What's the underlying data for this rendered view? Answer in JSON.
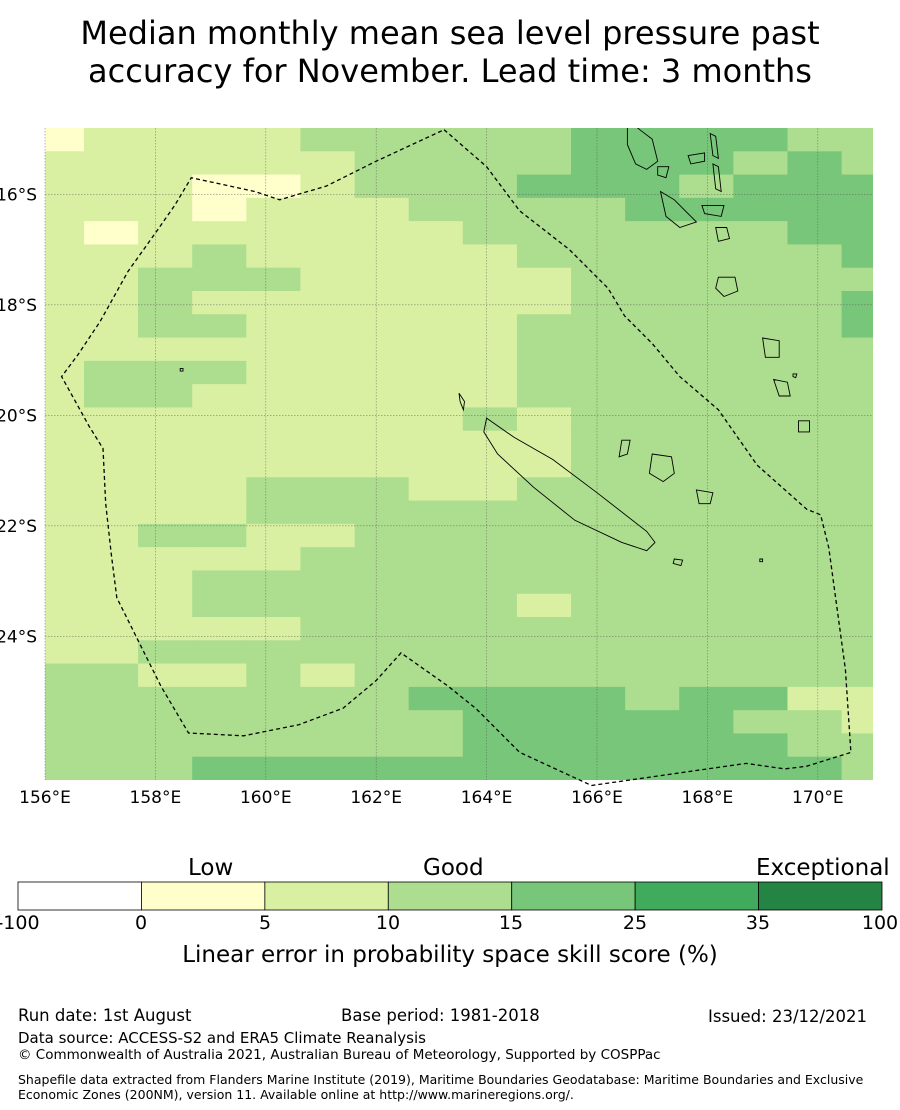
{
  "title_lines": [
    "Median monthly mean sea level pressure past",
    "accuracy for November. Lead time: 3 months"
  ],
  "map": {
    "lon_range": [
      156.0,
      171.0
    ],
    "lat_range": [
      -26.6,
      -14.8
    ],
    "lon_ticks": [
      {
        "value": 156,
        "label": "156°E"
      },
      {
        "value": 158,
        "label": "158°E"
      },
      {
        "value": 160,
        "label": "160°E"
      },
      {
        "value": 162,
        "label": "162°E"
      },
      {
        "value": 164,
        "label": "164°E"
      },
      {
        "value": 166,
        "label": "166°E"
      },
      {
        "value": 168,
        "label": "168°E"
      },
      {
        "value": 170,
        "label": "170°E"
      }
    ],
    "lat_ticks": [
      {
        "value": -16,
        "label": "16°S"
      },
      {
        "value": -18,
        "label": "18°S"
      },
      {
        "value": -20,
        "label": "20°S"
      },
      {
        "value": -22,
        "label": "22°S"
      },
      {
        "value": -24,
        "label": "24°S"
      }
    ],
    "grid": true,
    "cell_categories": [
      "1222233333444433",
      "2222223333444343",
      "2221123334443444",
      "2221222333344444",
      "2122222233333344",
      "2223222223333334",
      "2233322222333333",
      "2232222222333334",
      "2233222223333334",
      "2222222223333333",
      "2333222223333333",
      "2332222223333333",
      "2222222232333333",
      "2222222222333333",
      "2222222222333333",
      "2222333223333333",
      "2222333333333333",
      "2233223333333333",
      "2222233333333333",
      "2223333333333333",
      "2223333332333333",
      "2222233333333333",
      "2233333333333333",
      "3322323333333333",
      "3333333444434422",
      "3333333344444332",
      "3333333344444433",
      "3334444444444443"
    ],
    "eez_boundary": [
      [
        163.23,
        -14.83
      ],
      [
        164.0,
        -15.5
      ],
      [
        164.6,
        -16.3
      ],
      [
        165.5,
        -17.0
      ],
      [
        166.2,
        -17.7
      ],
      [
        166.5,
        -18.2
      ],
      [
        167.0,
        -18.7
      ],
      [
        167.5,
        -19.3
      ],
      [
        168.2,
        -19.9
      ],
      [
        168.9,
        -20.9
      ],
      [
        169.8,
        -21.7
      ],
      [
        170.05,
        -21.8
      ],
      [
        170.2,
        -22.4
      ],
      [
        170.5,
        -24.6
      ],
      [
        170.6,
        -26.1
      ],
      [
        169.8,
        -26.35
      ],
      [
        169.4,
        -26.4
      ],
      [
        168.7,
        -26.3
      ],
      [
        165.9,
        -26.7
      ],
      [
        164.6,
        -26.1
      ],
      [
        163.8,
        -25.3
      ],
      [
        163.3,
        -24.9
      ],
      [
        162.45,
        -24.3
      ],
      [
        162.0,
        -24.8
      ],
      [
        161.4,
        -25.3
      ],
      [
        160.6,
        -25.6
      ],
      [
        159.6,
        -25.8
      ],
      [
        158.6,
        -25.75
      ],
      [
        158.1,
        -24.9
      ],
      [
        157.7,
        -24.1
      ],
      [
        157.3,
        -23.3
      ],
      [
        157.2,
        -22.5
      ],
      [
        157.1,
        -21.6
      ],
      [
        157.05,
        -20.6
      ],
      [
        156.8,
        -20.2
      ],
      [
        156.3,
        -19.3
      ],
      [
        156.6,
        -18.9
      ],
      [
        157.0,
        -18.3
      ],
      [
        157.5,
        -17.4
      ],
      [
        158.0,
        -16.7
      ],
      [
        158.35,
        -16.2
      ],
      [
        158.65,
        -15.7
      ],
      [
        159.8,
        -15.95
      ],
      [
        160.25,
        -16.1
      ],
      [
        161.1,
        -15.85
      ],
      [
        162.0,
        -15.4
      ],
      [
        163.23,
        -14.83
      ]
    ],
    "islands": [
      {
        "name": "grande-terre",
        "points": [
          [
            164.0,
            -20.05
          ],
          [
            164.5,
            -20.4
          ],
          [
            165.2,
            -20.8
          ],
          [
            166.0,
            -21.4
          ],
          [
            166.9,
            -22.1
          ],
          [
            167.05,
            -22.3
          ],
          [
            166.9,
            -22.45
          ],
          [
            166.45,
            -22.3
          ],
          [
            165.6,
            -21.9
          ],
          [
            164.85,
            -21.3
          ],
          [
            164.2,
            -20.7
          ],
          [
            163.95,
            -20.3
          ],
          [
            164.0,
            -20.05
          ]
        ]
      },
      {
        "name": "ile-des-pins",
        "points": [
          [
            167.4,
            -22.6
          ],
          [
            167.55,
            -22.62
          ],
          [
            167.52,
            -22.72
          ],
          [
            167.38,
            -22.68
          ],
          [
            167.4,
            -22.6
          ]
        ]
      },
      {
        "name": "belep",
        "points": [
          [
            163.5,
            -19.6
          ],
          [
            163.6,
            -19.75
          ],
          [
            163.58,
            -19.9
          ],
          [
            163.52,
            -19.75
          ],
          [
            163.5,
            -19.6
          ]
        ]
      },
      {
        "name": "ouvea",
        "points": [
          [
            166.45,
            -20.45
          ],
          [
            166.6,
            -20.45
          ],
          [
            166.55,
            -20.7
          ],
          [
            166.4,
            -20.75
          ],
          [
            166.45,
            -20.45
          ]
        ]
      },
      {
        "name": "lifou",
        "points": [
          [
            167.0,
            -20.7
          ],
          [
            167.35,
            -20.75
          ],
          [
            167.4,
            -21.05
          ],
          [
            167.2,
            -21.2
          ],
          [
            166.95,
            -21.05
          ],
          [
            167.0,
            -20.7
          ]
        ]
      },
      {
        "name": "mare",
        "points": [
          [
            167.8,
            -21.35
          ],
          [
            168.1,
            -21.4
          ],
          [
            168.05,
            -21.6
          ],
          [
            167.85,
            -21.6
          ],
          [
            167.8,
            -21.35
          ]
        ]
      },
      {
        "name": "espiritu-santo",
        "points": [
          [
            166.55,
            -14.65
          ],
          [
            166.8,
            -14.85
          ],
          [
            167.0,
            -15.0
          ],
          [
            167.1,
            -15.4
          ],
          [
            166.9,
            -15.55
          ],
          [
            166.7,
            -15.45
          ],
          [
            166.55,
            -15.1
          ],
          [
            166.55,
            -14.65
          ]
        ]
      },
      {
        "name": "malo-area",
        "points": [
          [
            167.1,
            -15.5
          ],
          [
            167.3,
            -15.5
          ],
          [
            167.25,
            -15.7
          ],
          [
            167.1,
            -15.65
          ],
          [
            167.1,
            -15.5
          ]
        ]
      },
      {
        "name": "malekula",
        "points": [
          [
            167.15,
            -15.95
          ],
          [
            167.4,
            -16.1
          ],
          [
            167.8,
            -16.5
          ],
          [
            167.5,
            -16.6
          ],
          [
            167.25,
            -16.4
          ],
          [
            167.15,
            -15.95
          ]
        ]
      },
      {
        "name": "pentecost",
        "points": [
          [
            168.1,
            -15.45
          ],
          [
            168.2,
            -15.5
          ],
          [
            168.25,
            -15.95
          ],
          [
            168.15,
            -15.9
          ],
          [
            168.1,
            -15.45
          ]
        ]
      },
      {
        "name": "ambae",
        "points": [
          [
            167.65,
            -15.3
          ],
          [
            167.95,
            -15.25
          ],
          [
            167.95,
            -15.4
          ],
          [
            167.7,
            -15.45
          ],
          [
            167.65,
            -15.3
          ]
        ]
      },
      {
        "name": "maewo",
        "points": [
          [
            168.05,
            -14.9
          ],
          [
            168.15,
            -14.95
          ],
          [
            168.2,
            -15.35
          ],
          [
            168.1,
            -15.3
          ],
          [
            168.05,
            -14.9
          ]
        ]
      },
      {
        "name": "ambrym",
        "points": [
          [
            167.9,
            -16.2
          ],
          [
            168.3,
            -16.2
          ],
          [
            168.25,
            -16.4
          ],
          [
            167.95,
            -16.35
          ],
          [
            167.9,
            -16.2
          ]
        ]
      },
      {
        "name": "epi",
        "points": [
          [
            168.15,
            -16.6
          ],
          [
            168.35,
            -16.6
          ],
          [
            168.4,
            -16.8
          ],
          [
            168.2,
            -16.85
          ],
          [
            168.15,
            -16.6
          ]
        ]
      },
      {
        "name": "efate",
        "points": [
          [
            168.2,
            -17.5
          ],
          [
            168.5,
            -17.5
          ],
          [
            168.55,
            -17.75
          ],
          [
            168.3,
            -17.85
          ],
          [
            168.15,
            -17.7
          ],
          [
            168.2,
            -17.5
          ]
        ]
      },
      {
        "name": "erromango",
        "points": [
          [
            169.0,
            -18.6
          ],
          [
            169.3,
            -18.65
          ],
          [
            169.3,
            -18.95
          ],
          [
            169.05,
            -18.95
          ],
          [
            169.0,
            -18.6
          ]
        ]
      },
      {
        "name": "tanna",
        "points": [
          [
            169.2,
            -19.35
          ],
          [
            169.45,
            -19.4
          ],
          [
            169.5,
            -19.65
          ],
          [
            169.3,
            -19.65
          ],
          [
            169.2,
            -19.35
          ]
        ]
      },
      {
        "name": "aneityum",
        "points": [
          [
            169.65,
            -20.1
          ],
          [
            169.85,
            -20.1
          ],
          [
            169.85,
            -20.3
          ],
          [
            169.65,
            -20.3
          ],
          [
            169.65,
            -20.1
          ]
        ]
      },
      {
        "name": "chesterfield",
        "points": [
          [
            158.45,
            -19.15
          ],
          [
            158.5,
            -19.15
          ],
          [
            158.5,
            -19.2
          ],
          [
            158.45,
            -19.2
          ],
          [
            158.45,
            -19.15
          ]
        ]
      },
      {
        "name": "walpole",
        "points": [
          [
            168.95,
            -22.6
          ],
          [
            169.0,
            -22.6
          ],
          [
            169.0,
            -22.65
          ],
          [
            168.95,
            -22.65
          ],
          [
            168.95,
            -22.6
          ]
        ]
      },
      {
        "name": "aniwa",
        "points": [
          [
            169.55,
            -19.25
          ],
          [
            169.62,
            -19.25
          ],
          [
            169.6,
            -19.32
          ],
          [
            169.55,
            -19.3
          ],
          [
            169.55,
            -19.25
          ]
        ]
      }
    ]
  },
  "colorbar": {
    "category_labels": [
      "Low",
      "Good",
      "Exceptional"
    ],
    "ticks": [
      "-100",
      "0",
      "5",
      "10",
      "15",
      "25",
      "35",
      "100"
    ],
    "colors": [
      "#ffffff",
      "#ffffcc",
      "#d9f0a3",
      "#addd8e",
      "#78c679",
      "#41ab5d",
      "#238443"
    ],
    "title": "Linear error in probability space skill score (%)"
  },
  "footer": {
    "run_date": "Run date: 1st August",
    "base_period": "Base period: 1981-2018",
    "issued": "Issued: 23/12/2021",
    "data_source": "Data source: ACCESS-S2 and ERA5 Climate Reanalysis",
    "copyright": "© Commonwealth of Australia 2021, Australian Bureau of Meteorology, Supported by COSPPac",
    "shapefile": "Shapefile data extracted from Flanders Marine Institute (2019), Maritime Boundaries Geodatabase: Maritime Boundaries and Exclusive Economic Zones (200NM), version 11. Available online at http://www.marineregions.org/."
  }
}
